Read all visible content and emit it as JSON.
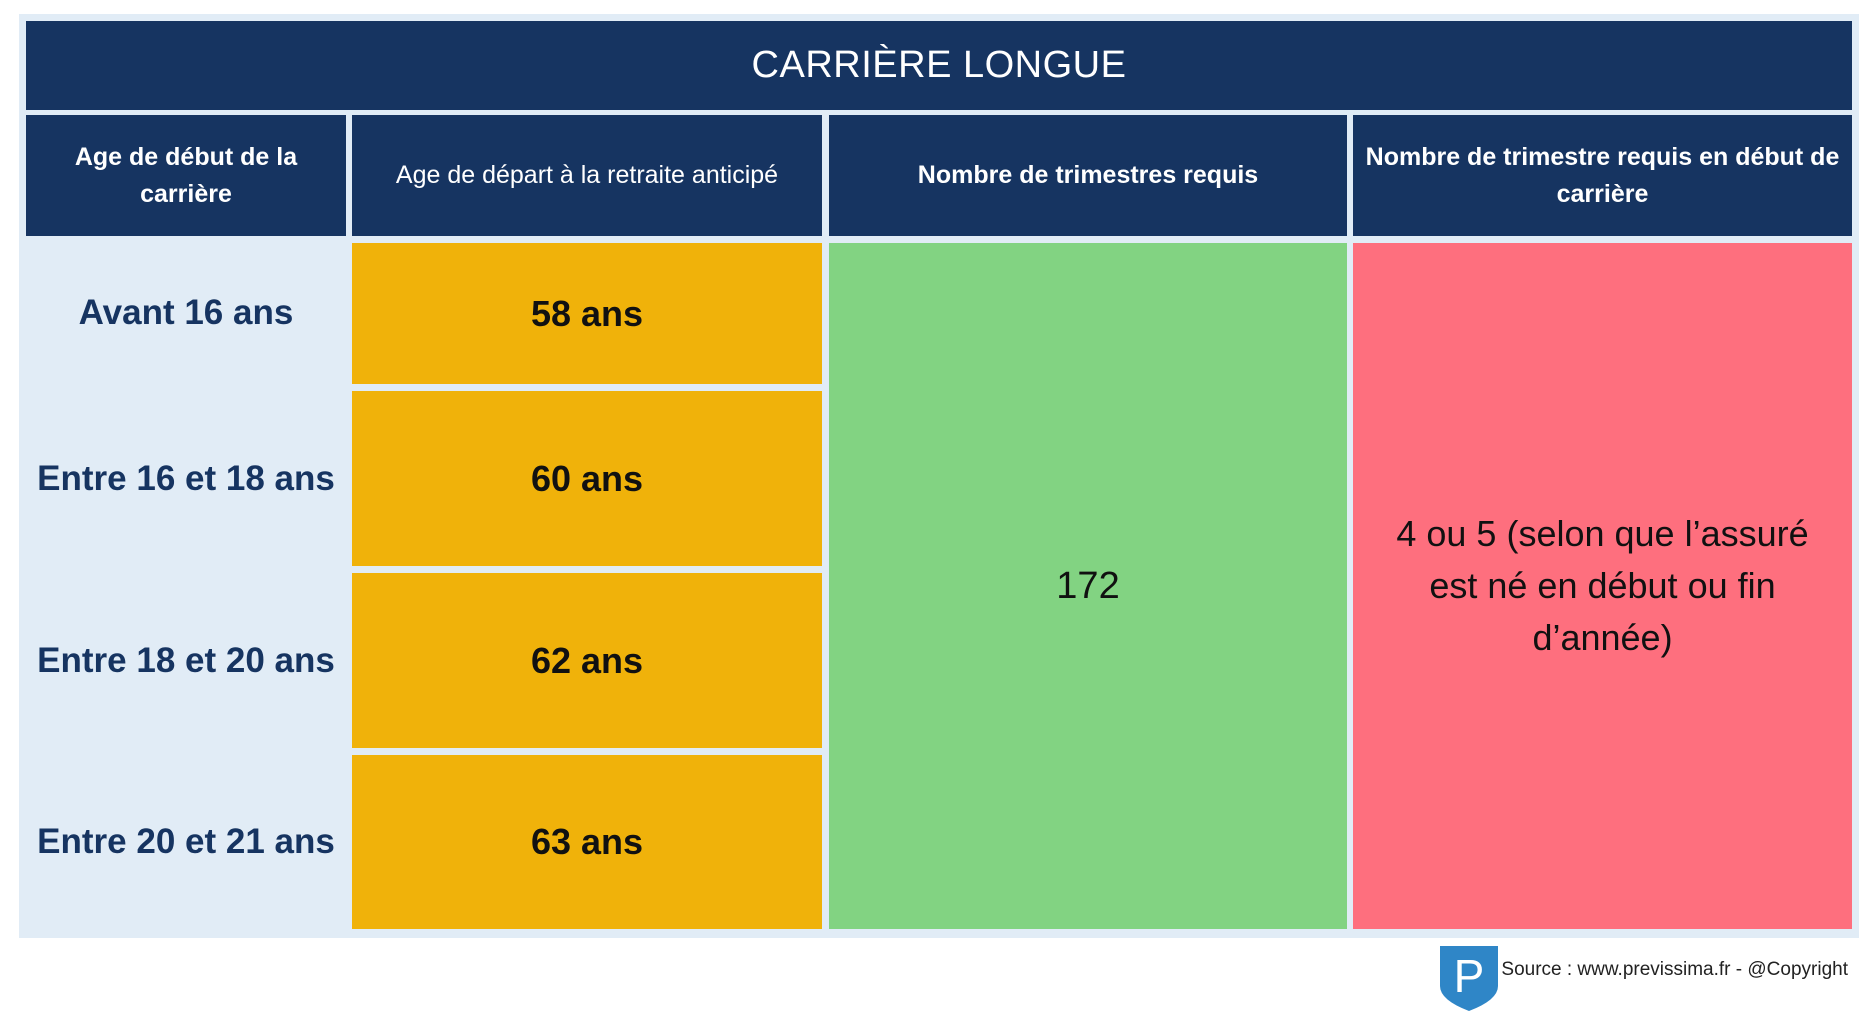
{
  "title": "CARRIÈRE LONGUE",
  "headers": [
    "Age de début de la carrière",
    "Age de départ à la retraite anticipé",
    "Nombre de trimestres requis",
    "Nombre de trimestre requis en début de carrière"
  ],
  "rows": [
    {
      "start_age": "Avant 16 ans",
      "retirement_age": "58 ans"
    },
    {
      "start_age": "Entre 16 et 18 ans",
      "retirement_age": "60 ans"
    },
    {
      "start_age": "Entre 18 et 20 ans",
      "retirement_age": "62 ans"
    },
    {
      "start_age": "Entre 20 et 21 ans",
      "retirement_age": "63 ans"
    }
  ],
  "required_quarters": "172",
  "early_quarters": "4 ou 5 (selon que l’assuré est né en début ou fin d’année)",
  "logo_letter": "P",
  "source": "Source : www.previssima.fr - @Copyright",
  "colors": {
    "header": "#163461",
    "label_column": "#e1ecf6",
    "age": "#f0b20a",
    "quarters": "#82d382",
    "early": "#fe6f7e",
    "logo": "#2f86c7"
  }
}
